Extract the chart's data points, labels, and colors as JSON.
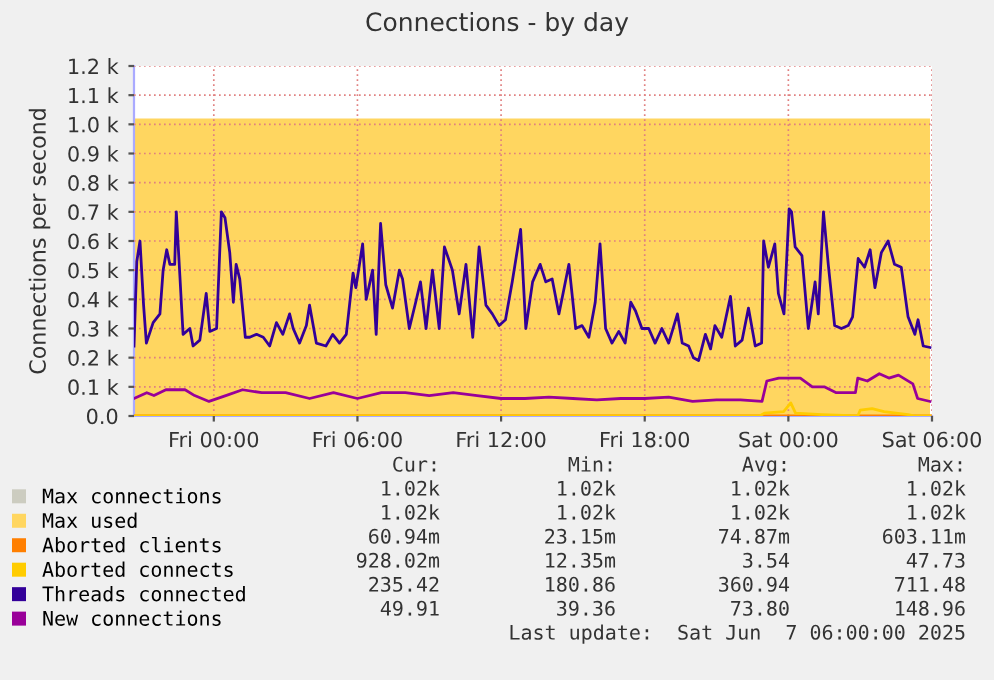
{
  "chart_data": {
    "type": "line",
    "title": "Connections - by day",
    "ylabel": "Connections per second",
    "xlim": [
      "2025-06-05T20:40",
      "2025-06-07T06:00"
    ],
    "xticks": [
      {
        "value": "2025-06-06T00:00",
        "label": "Fri 00:00"
      },
      {
        "value": "2025-06-06T06:00",
        "label": "Fri 06:00"
      },
      {
        "value": "2025-06-06T12:00",
        "label": "Fri 12:00"
      },
      {
        "value": "2025-06-06T18:00",
        "label": "Fri 18:00"
      },
      {
        "value": "2025-06-07T00:00",
        "label": "Sat 00:00"
      },
      {
        "value": "2025-06-07T06:00",
        "label": "Sat 06:00"
      }
    ],
    "ylim": [
      0,
      1200
    ],
    "yticks": [
      {
        "value": 0,
        "label": "0.0"
      },
      {
        "value": 100,
        "label": "0.1 k"
      },
      {
        "value": 200,
        "label": "0.2 k"
      },
      {
        "value": 300,
        "label": "0.3 k"
      },
      {
        "value": 400,
        "label": "0.4 k"
      },
      {
        "value": 500,
        "label": "0.5 k"
      },
      {
        "value": 600,
        "label": "0.6 k"
      },
      {
        "value": 700,
        "label": "0.7 k"
      },
      {
        "value": 800,
        "label": "0.8 k"
      },
      {
        "value": 900,
        "label": "0.9 k"
      },
      {
        "value": 1000,
        "label": "1.0 k"
      },
      {
        "value": 1100,
        "label": "1.1 k"
      },
      {
        "value": 1200,
        "label": "1.2 k"
      }
    ],
    "grid": true,
    "legend": "bottom",
    "series": [
      {
        "name": "Max connections",
        "type": "area",
        "color": "#ccccc0"
      },
      {
        "name": "Max used",
        "type": "area",
        "color": "#ffd660",
        "x": [
          "2025-06-05T20:40",
          "2025-06-07T05:55"
        ],
        "values": [
          1020,
          1020
        ]
      },
      {
        "name": "Aborted clients",
        "color": "#ff7f00",
        "x": [
          "2025-06-05T20:40",
          "2025-06-07T05:55"
        ],
        "values": [
          0,
          0
        ]
      },
      {
        "name": "Aborted connects",
        "color": "#ffcc00",
        "x": [
          "2025-06-05T20:40",
          "2025-06-06T22:48",
          "2025-06-06T23:00",
          "2025-06-06T23:48",
          "2025-06-07T00:06",
          "2025-06-07T00:18",
          "2025-06-07T01:24",
          "2025-06-07T02:54",
          "2025-06-07T03:00",
          "2025-06-07T03:30",
          "2025-06-07T04:00",
          "2025-06-07T05:00",
          "2025-06-07T05:18",
          "2025-06-07T05:55"
        ],
        "values": [
          0,
          0,
          10,
          15,
          45,
          10,
          5,
          0,
          20,
          25,
          15,
          5,
          0,
          0
        ]
      },
      {
        "name": "Threads connected",
        "color": "#330099",
        "x": [
          "2025-06-05T20:40",
          "2025-06-05T20:47",
          "2025-06-05T20:55",
          "2025-06-05T21:04",
          "2025-06-05T21:11",
          "2025-06-05T21:28",
          "2025-06-05T21:45",
          "2025-06-05T21:53",
          "2025-06-05T22:02",
          "2025-06-05T22:10",
          "2025-06-05T22:22",
          "2025-06-05T22:26",
          "2025-06-05T22:35",
          "2025-06-05T22:43",
          "2025-06-05T23:00",
          "2025-06-05T23:08",
          "2025-06-05T23:25",
          "2025-06-05T23:41",
          "2025-06-05T23:50",
          "2025-06-06T00:07",
          "2025-06-06T00:19",
          "2025-06-06T00:28",
          "2025-06-06T00:40",
          "2025-06-06T00:49",
          "2025-06-06T00:56",
          "2025-06-06T01:05",
          "2025-06-06T01:19",
          "2025-06-06T01:30",
          "2025-06-06T01:47",
          "2025-06-06T02:04",
          "2025-06-06T02:20",
          "2025-06-06T02:37",
          "2025-06-06T02:53",
          "2025-06-06T03:10",
          "2025-06-06T03:19",
          "2025-06-06T03:35",
          "2025-06-06T03:52",
          "2025-06-06T04:00",
          "2025-06-06T04:17",
          "2025-06-06T04:41",
          "2025-06-06T04:58",
          "2025-06-06T05:15",
          "2025-06-06T05:32",
          "2025-06-06T05:49",
          "2025-06-06T05:56",
          "2025-06-06T06:13",
          "2025-06-06T06:22",
          "2025-06-06T06:38",
          "2025-06-06T06:47",
          "2025-06-06T06:58",
          "2025-06-06T07:11",
          "2025-06-06T07:28",
          "2025-06-06T07:45",
          "2025-06-06T07:53",
          "2025-06-06T08:10",
          "2025-06-06T08:26",
          "2025-06-06T08:38",
          "2025-06-06T08:52",
          "2025-06-06T09:08",
          "2025-06-06T09:25",
          "2025-06-06T09:38",
          "2025-06-06T09:58",
          "2025-06-06T10:15",
          "2025-06-06T10:32",
          "2025-06-06T10:49",
          "2025-06-06T11:05",
          "2025-06-06T11:22",
          "2025-06-06T11:38",
          "2025-06-06T11:55",
          "2025-06-06T12:11",
          "2025-06-06T12:28",
          "2025-06-06T12:49",
          "2025-06-06T13:02",
          "2025-06-06T13:19",
          "2025-06-06T13:38",
          "2025-06-06T13:52",
          "2025-06-06T14:08",
          "2025-06-06T14:25",
          "2025-06-06T14:50",
          "2025-06-06T15:07",
          "2025-06-06T15:23",
          "2025-06-06T15:40",
          "2025-06-06T15:56",
          "2025-06-06T16:08",
          "2025-06-06T16:22",
          "2025-06-06T16:38",
          "2025-06-06T16:55",
          "2025-06-06T17:11",
          "2025-06-06T17:25",
          "2025-06-06T17:37",
          "2025-06-06T17:53",
          "2025-06-06T18:10",
          "2025-06-06T18:26",
          "2025-06-06T18:43",
          "2025-06-06T19:00",
          "2025-06-06T19:22",
          "2025-06-06T19:34",
          "2025-06-06T19:50",
          "2025-06-06T20:02",
          "2025-06-06T20:15",
          "2025-06-06T20:32",
          "2025-06-06T20:45",
          "2025-06-06T20:56",
          "2025-06-06T21:13",
          "2025-06-06T21:35",
          "2025-06-06T21:47",
          "2025-06-06T22:04",
          "2025-06-06T22:20",
          "2025-06-06T22:37",
          "2025-06-06T22:53",
          "2025-06-06T22:58",
          "2025-06-06T23:10",
          "2025-06-06T23:26",
          "2025-06-06T23:35",
          "2025-06-06T23:49",
          "2025-06-07T00:02",
          "2025-06-07T00:08",
          "2025-06-07T00:17",
          "2025-06-07T00:34",
          "2025-06-07T00:50",
          "2025-06-07T01:07",
          "2025-06-07T01:15",
          "2025-06-07T01:28",
          "2025-06-07T01:40",
          "2025-06-07T01:56",
          "2025-06-07T02:13",
          "2025-06-07T02:30",
          "2025-06-07T02:41",
          "2025-06-07T02:55",
          "2025-06-07T03:11",
          "2025-06-07T03:25",
          "2025-06-07T03:37",
          "2025-06-07T03:53",
          "2025-06-07T04:10",
          "2025-06-07T04:26",
          "2025-06-07T04:43",
          "2025-06-07T05:00",
          "2025-06-07T05:17",
          "2025-06-07T05:25",
          "2025-06-07T05:38",
          "2025-06-07T05:55"
        ],
        "values": [
          240,
          530,
          600,
          380,
          250,
          320,
          350,
          500,
          570,
          520,
          520,
          700,
          480,
          280,
          300,
          240,
          260,
          420,
          290,
          300,
          700,
          680,
          560,
          390,
          520,
          470,
          270,
          270,
          280,
          270,
          240,
          320,
          280,
          350,
          300,
          250,
          310,
          380,
          250,
          240,
          280,
          250,
          280,
          490,
          440,
          590,
          400,
          500,
          280,
          660,
          450,
          370,
          500,
          470,
          300,
          390,
          460,
          300,
          500,
          300,
          580,
          500,
          350,
          520,
          270,
          580,
          380,
          350,
          310,
          330,
          460,
          640,
          300,
          460,
          520,
          460,
          470,
          350,
          520,
          300,
          310,
          270,
          390,
          590,
          300,
          250,
          290,
          250,
          390,
          360,
          300,
          300,
          250,
          300,
          250,
          350,
          250,
          240,
          200,
          190,
          280,
          230,
          310,
          270,
          410,
          240,
          260,
          370,
          240,
          250,
          600,
          510,
          590,
          420,
          350,
          710,
          700,
          580,
          550,
          300,
          460,
          350,
          700,
          520,
          310,
          300,
          310,
          340,
          540,
          510,
          570,
          440,
          560,
          600,
          520,
          510,
          340,
          280,
          330,
          240,
          235
        ]
      },
      {
        "name": "New connections",
        "color": "#990099",
        "x": [
          "2025-06-05T20:40",
          "2025-06-05T21:12",
          "2025-06-05T21:30",
          "2025-06-05T22:00",
          "2025-06-05T22:48",
          "2025-06-05T23:12",
          "2025-06-05T23:48",
          "2025-06-06T00:30",
          "2025-06-06T01:12",
          "2025-06-06T02:00",
          "2025-06-06T03:00",
          "2025-06-06T04:00",
          "2025-06-06T05:00",
          "2025-06-06T06:00",
          "2025-06-06T07:00",
          "2025-06-06T08:00",
          "2025-06-06T09:00",
          "2025-06-06T10:00",
          "2025-06-06T11:00",
          "2025-06-06T12:00",
          "2025-06-06T13:00",
          "2025-06-06T14:00",
          "2025-06-06T15:00",
          "2025-06-06T16:00",
          "2025-06-06T17:00",
          "2025-06-06T18:00",
          "2025-06-06T19:00",
          "2025-06-06T20:00",
          "2025-06-06T21:00",
          "2025-06-06T22:00",
          "2025-06-06T22:54",
          "2025-06-06T23:06",
          "2025-06-06T23:36",
          "2025-06-07T00:30",
          "2025-06-07T01:00",
          "2025-06-07T01:30",
          "2025-06-07T02:00",
          "2025-06-07T02:48",
          "2025-06-07T02:54",
          "2025-06-07T03:18",
          "2025-06-07T03:48",
          "2025-06-07T04:12",
          "2025-06-07T04:36",
          "2025-06-07T05:12",
          "2025-06-07T05:24",
          "2025-06-07T05:55"
        ],
        "values": [
          60,
          80,
          70,
          90,
          90,
          70,
          50,
          70,
          90,
          80,
          80,
          60,
          80,
          60,
          80,
          80,
          70,
          80,
          70,
          60,
          60,
          65,
          60,
          55,
          60,
          60,
          65,
          50,
          55,
          55,
          50,
          120,
          130,
          130,
          100,
          100,
          80,
          80,
          130,
          120,
          145,
          130,
          140,
          110,
          60,
          50
        ]
      }
    ],
    "annotations": [
      "Cur:",
      "Min:",
      "Avg:",
      "Max:",
      "1.02k",
      "1.02k",
      "1.02k",
      "1.02k",
      "1.02k",
      "1.02k",
      "1.02k",
      "1.02k",
      "60.94m",
      "23.15m",
      "74.87m",
      "603.11m",
      "928.02m",
      "12.35m",
      "3.54",
      "47.73",
      "235.42",
      "180.86",
      "360.94",
      "711.48",
      "49.91",
      "39.36",
      "73.80",
      "148.96",
      "Last update:  Sat Jun  7 06:00:00 2025"
    ]
  }
}
